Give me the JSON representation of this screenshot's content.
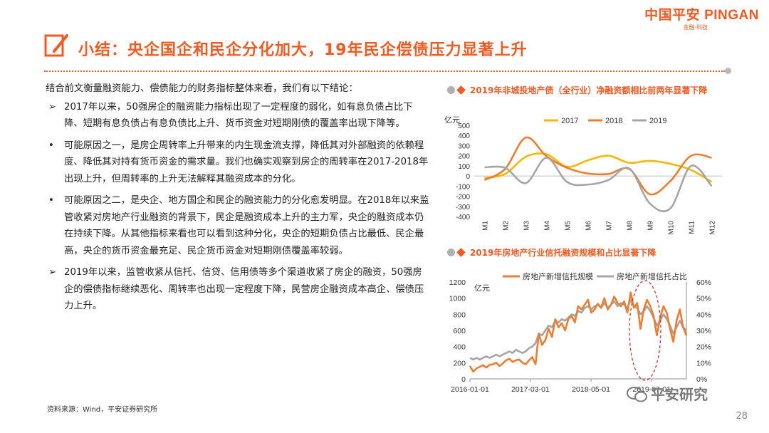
{
  "logo": {
    "brand_cn": "中国平安",
    "brand_en": "PINGAN",
    "tagline": "金融·科技"
  },
  "title": "小结：央企国企和民企分化加大，19年民企偿债压力显著上升",
  "left_text": {
    "intro": "结合前文衡量融资能力、偿债能力的财务指标整体来看，我们有以下结论：",
    "bullets": [
      {
        "mark": "➢",
        "text": "2017年以来，50强房企的融资能力指标出现了一定程度的弱化，如有息负债占比下降、短期有息负债占有息负债比上升、货币资金对短期刚债的覆盖率出现下降等。"
      },
      {
        "mark": "•",
        "text": "可能原因之一，是房企周转率上升带来的内生现金流支撑，降低其对外部融资的依赖程度、降低其对持有货币资金的需求量。我们也确实观察到房企的周转率在2017-2018年出现上升，但周转率的上升无法解释其融资成本的分化。"
      },
      {
        "mark": "•",
        "text": "可能原因之二，是央企、地方国企和民企的融资能力的分化愈发明显。在2018年以来监管收紧对房地产行业融资的背景下，民企是融资成本上升的主力军，央企的融资成本仍在持续下降。从其他指标来看也可以看到这种分化，央企的短期负债占比最低、民企最高，央企的货币资金最充足、民企货币资金对短期刚债覆盖率较弱。"
      },
      {
        "mark": "➢",
        "text": "2019年以来，监管收紧从信托、信贷、信用债等多个渠道收紧了房企的融资，50强房企的偿债指标继续恶化、周转率也出现一定程度下降，民营房企融资成本高企、偿债压力上升。"
      }
    ]
  },
  "source": "资料来源：Wind，平安证券研究所",
  "page_number": "28",
  "watermark": "平安研究",
  "colors": {
    "accent": "#f05a23",
    "y2017": "#f5b800",
    "y2018": "#ed7d31",
    "y2019": "#a5a5a5"
  },
  "chart1_title": "2019年非城投地产债（全行业）净融资额相比前两年显著下降",
  "chart2_title": "2019年房地产行业信托融资规模和占比显著下降",
  "chart_data": [
    {
      "type": "line",
      "ylabel": "亿元",
      "categories": [
        "M1",
        "M2",
        "M3",
        "M4",
        "M5",
        "M6",
        "M7",
        "M8",
        "M9",
        "M10",
        "M11",
        "M12"
      ],
      "ylim": [
        -400,
        500
      ],
      "yticks": [
        500,
        400,
        300,
        200,
        100,
        0,
        -100,
        -200,
        -300,
        -400
      ],
      "series": [
        {
          "name": "2017",
          "color": "#f5b800",
          "values": [
            -20,
            20,
            190,
            215,
            90,
            155,
            200,
            130,
            150,
            120,
            60,
            -60
          ]
        },
        {
          "name": "2018",
          "color": "#ed7d31",
          "values": [
            -40,
            70,
            380,
            195,
            80,
            25,
            20,
            70,
            -180,
            -50,
            200,
            180
          ]
        },
        {
          "name": "2019",
          "color": "#a5a5a5",
          "values": [
            85,
            80,
            -70,
            180,
            -60,
            -85,
            -40,
            75,
            -270,
            -320,
            100,
            -100
          ]
        }
      ],
      "legend": "top"
    },
    {
      "type": "line",
      "ylabel": "亿元",
      "x_ticks": [
        "2016-01-01",
        "2017-03-01",
        "2018-05-01",
        "2019-07-01"
      ],
      "x_range": [
        "2016-01-01",
        "2020-03-01"
      ],
      "ylim": [
        0,
        1200
      ],
      "yticks": [
        1200,
        1000,
        800,
        600,
        400,
        200,
        0
      ],
      "y2lim": [
        0,
        0.6
      ],
      "y2ticks": [
        "60%",
        "50%",
        "40%",
        "30%",
        "20%",
        "10%",
        "0%"
      ],
      "series": [
        {
          "name": "房地产新增信托规模",
          "color": "#ed7d31",
          "axis": "left",
          "values": [
            160,
            90,
            130,
            150,
            170,
            140,
            175,
            180,
            200,
            160,
            190,
            230,
            250,
            210,
            230,
            240,
            200,
            180,
            230,
            270,
            180,
            560,
            420,
            480,
            620,
            520,
            740,
            640,
            690,
            600,
            740,
            780,
            700,
            900,
            860,
            920,
            980,
            820,
            860,
            930,
            880,
            1000,
            860,
            920,
            1020,
            940,
            900,
            960,
            820,
            1070,
            880,
            940,
            620,
            860,
            980,
            900,
            780,
            540,
            760,
            900,
            820,
            620,
            460,
            720,
            860,
            640,
            540
          ]
        },
        {
          "name": "房地产新增信托占比",
          "color": "#a5a5a5",
          "axis": "right",
          "values": [
            0.13,
            0.12,
            0.13,
            0.12,
            0.13,
            0.14,
            0.13,
            0.14,
            0.15,
            0.14,
            0.15,
            0.16,
            0.17,
            0.16,
            0.18,
            0.17,
            0.16,
            0.17,
            0.19,
            0.2,
            0.22,
            0.28,
            0.27,
            0.3,
            0.33,
            0.32,
            0.36,
            0.35,
            0.37,
            0.36,
            0.38,
            0.4,
            0.39,
            0.42,
            0.41,
            0.44,
            0.45,
            0.43,
            0.45,
            0.46,
            0.44,
            0.47,
            0.44,
            0.46,
            0.48,
            0.45,
            0.47,
            0.46,
            0.44,
            0.49,
            0.45,
            0.44,
            0.4,
            0.42,
            0.45,
            0.42,
            0.38,
            0.33,
            0.36,
            0.4,
            0.37,
            0.33,
            0.28,
            0.32,
            0.36,
            0.32,
            0.3
          ]
        }
      ],
      "legend": "top"
    }
  ]
}
